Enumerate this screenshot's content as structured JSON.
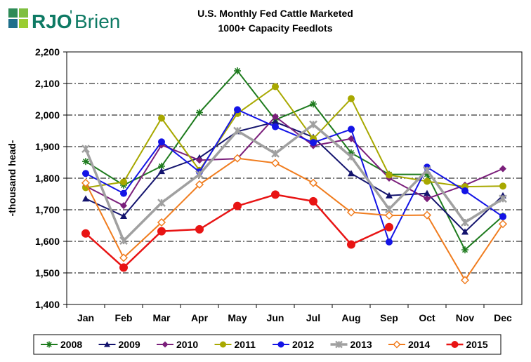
{
  "logo": {
    "mark": "RJO",
    "apostrophe": "'",
    "rest": "Brien",
    "tile_colors": [
      "#2e8b57",
      "#7fbf3f",
      "#1f6f8b",
      "#9acd32"
    ]
  },
  "chart_data": {
    "type": "line",
    "title": "U.S. Monthly Fed Cattle Marketed",
    "subtitle": "1000+ Capacity Feedlots",
    "xlabel": "",
    "ylabel": "-thousand head-",
    "categories": [
      "Jan",
      "Feb",
      "Mar",
      "Apr",
      "May",
      "Jun",
      "Jul",
      "Aug",
      "Sep",
      "Oct",
      "Nov",
      "Dec"
    ],
    "ylim": [
      1400,
      2200
    ],
    "yticks": [
      1400,
      1500,
      1600,
      1700,
      1800,
      1900,
      2000,
      2100,
      2200
    ],
    "ytick_labels": [
      "1,400",
      "1,500",
      "1,600",
      "1,700",
      "1,800",
      "1,900",
      "2,000",
      "2,100",
      "2,200"
    ],
    "grid": "horizontal dashed",
    "legend_position": "bottom",
    "series": [
      {
        "name": "2008",
        "color": "#1e7b1e",
        "marker": "asterisk",
        "values": [
          1853,
          1778,
          1838,
          2008,
          2140,
          1985,
          2035,
          1880,
          1812,
          1812,
          1573,
          1680
        ]
      },
      {
        "name": "2009",
        "color": "#14146e",
        "marker": "triangle",
        "values": [
          1735,
          1680,
          1822,
          1865,
          1948,
          1978,
          1930,
          1815,
          1745,
          1752,
          1630,
          1745
        ]
      },
      {
        "name": "2010",
        "color": "#7b1f7b",
        "marker": "diamond",
        "values": [
          1775,
          1713,
          1905,
          1857,
          1862,
          1995,
          1903,
          1925,
          1800,
          1735,
          1778,
          1830
        ]
      },
      {
        "name": "2011",
        "color": "#a8a800",
        "marker": "circle",
        "values": [
          1770,
          1788,
          1990,
          1825,
          2005,
          2090,
          1925,
          2052,
          1810,
          1790,
          1773,
          1775
        ]
      },
      {
        "name": "2012",
        "color": "#1414e6",
        "marker": "circle",
        "values": [
          1815,
          1752,
          1915,
          1820,
          2017,
          1963,
          1913,
          1955,
          1598,
          1835,
          1760,
          1678
        ]
      },
      {
        "name": "2013",
        "color": "#a0a0a0",
        "marker": "x",
        "values": [
          1893,
          1602,
          1722,
          1812,
          1950,
          1878,
          1970,
          1868,
          1702,
          1825,
          1660,
          1735
        ]
      },
      {
        "name": "2014",
        "color": "#f07c1e",
        "marker": "open-diamond",
        "values": [
          1785,
          1548,
          1660,
          1780,
          1863,
          1848,
          1785,
          1692,
          1682,
          1683,
          1477,
          1655
        ]
      },
      {
        "name": "2015",
        "color": "#e81414",
        "marker": "circle",
        "values": [
          1625,
          1517,
          1632,
          1638,
          1712,
          1748,
          1727,
          1590,
          1645,
          null,
          null,
          null
        ]
      }
    ]
  }
}
